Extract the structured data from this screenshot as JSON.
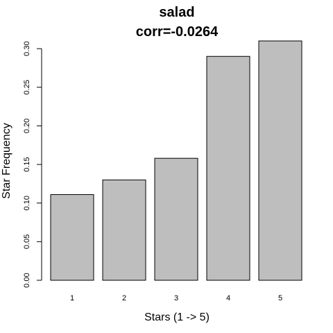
{
  "chart_data": {
    "type": "bar",
    "title": "salad",
    "subtitle": "corr=-0.0264",
    "xlabel": "Stars (1 -> 5)",
    "ylabel": "Star Frequency",
    "categories": [
      "1",
      "2",
      "3",
      "4",
      "5"
    ],
    "values": [
      0.111,
      0.13,
      0.158,
      0.29,
      0.31
    ],
    "ylim": [
      0,
      0.31
    ],
    "yticks": [
      0.0,
      0.05,
      0.1,
      0.15,
      0.2,
      0.25,
      0.3
    ],
    "ytick_labels": [
      "0.00",
      "0.05",
      "0.10",
      "0.15",
      "0.20",
      "0.25",
      "0.30"
    ],
    "bar_color": "#bebebe",
    "grid": false,
    "legend": "none"
  }
}
